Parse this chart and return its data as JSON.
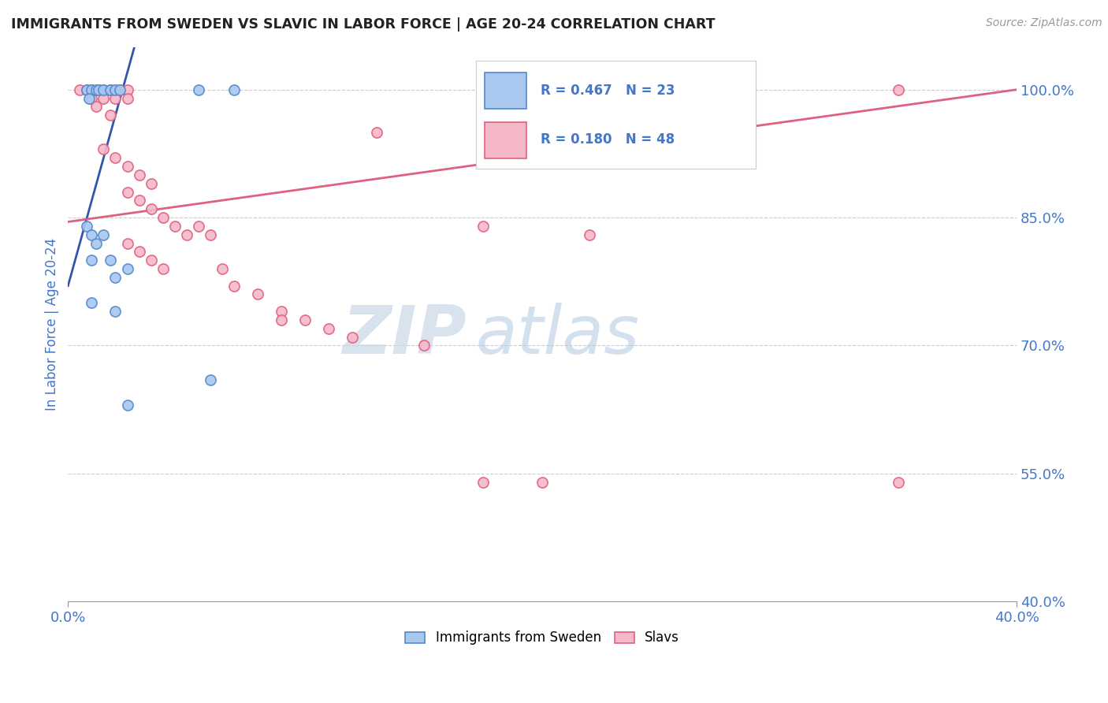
{
  "title": "IMMIGRANTS FROM SWEDEN VS SLAVIC IN LABOR FORCE | AGE 20-24 CORRELATION CHART",
  "source": "Source: ZipAtlas.com",
  "ylabel": "In Labor Force | Age 20-24",
  "xlim": [
    0.0,
    0.4
  ],
  "ylim": [
    0.4,
    1.05
  ],
  "ytick_vals": [
    0.4,
    0.55,
    0.7,
    0.85,
    1.0
  ],
  "ytick_labels": [
    "40.0%",
    "55.0%",
    "70.0%",
    "85.0%",
    "100.0%"
  ],
  "xtick_vals": [
    0.0,
    0.4
  ],
  "xtick_labels": [
    "0.0%",
    "40.0%"
  ],
  "sweden_color": "#a8c8f0",
  "slavic_color": "#f5b8c8",
  "sweden_edge_color": "#5588cc",
  "slavic_edge_color": "#e06080",
  "sweden_line_color": "#3355aa",
  "slavic_line_color": "#e06080",
  "sweden_R": 0.467,
  "sweden_N": 23,
  "slavic_R": 0.18,
  "slavic_N": 48,
  "watermark_zip": "ZIP",
  "watermark_atlas": "atlas",
  "background_color": "#ffffff",
  "grid_color": "#cccccc",
  "title_color": "#222222",
  "axis_label_color": "#4477cc",
  "R_value_color": "#4477cc",
  "marker_size": 90,
  "marker_edge_width": 1.2,
  "sw_x": [
    0.008,
    0.01,
    0.012,
    0.009,
    0.013,
    0.015,
    0.018,
    0.02,
    0.022,
    0.008,
    0.01,
    0.015,
    0.012,
    0.01,
    0.018,
    0.02,
    0.025,
    0.01,
    0.02,
    0.025,
    0.055,
    0.07,
    0.06
  ],
  "sw_y": [
    1.0,
    1.0,
    1.0,
    0.99,
    1.0,
    1.0,
    1.0,
    1.0,
    1.0,
    0.84,
    0.83,
    0.83,
    0.82,
    0.8,
    0.8,
    0.78,
    0.79,
    0.75,
    0.74,
    0.63,
    1.0,
    1.0,
    0.66
  ],
  "sl_x": [
    0.005,
    0.008,
    0.01,
    0.013,
    0.015,
    0.018,
    0.02,
    0.022,
    0.025,
    0.01,
    0.015,
    0.02,
    0.025,
    0.012,
    0.018,
    0.015,
    0.02,
    0.025,
    0.03,
    0.035,
    0.025,
    0.03,
    0.035,
    0.04,
    0.045,
    0.05,
    0.025,
    0.03,
    0.035,
    0.04,
    0.055,
    0.06,
    0.065,
    0.07,
    0.08,
    0.09,
    0.1,
    0.11,
    0.12,
    0.15,
    0.175,
    0.2,
    0.35,
    0.09,
    0.13,
    0.175,
    0.35,
    0.22
  ],
  "sl_y": [
    1.0,
    1.0,
    1.0,
    1.0,
    1.0,
    1.0,
    1.0,
    1.0,
    1.0,
    0.99,
    0.99,
    0.99,
    0.99,
    0.98,
    0.97,
    0.93,
    0.92,
    0.91,
    0.9,
    0.89,
    0.88,
    0.87,
    0.86,
    0.85,
    0.84,
    0.83,
    0.82,
    0.81,
    0.8,
    0.79,
    0.84,
    0.83,
    0.79,
    0.77,
    0.76,
    0.74,
    0.73,
    0.72,
    0.71,
    0.7,
    0.54,
    0.54,
    1.0,
    0.73,
    0.95,
    0.84,
    0.54,
    0.83
  ]
}
